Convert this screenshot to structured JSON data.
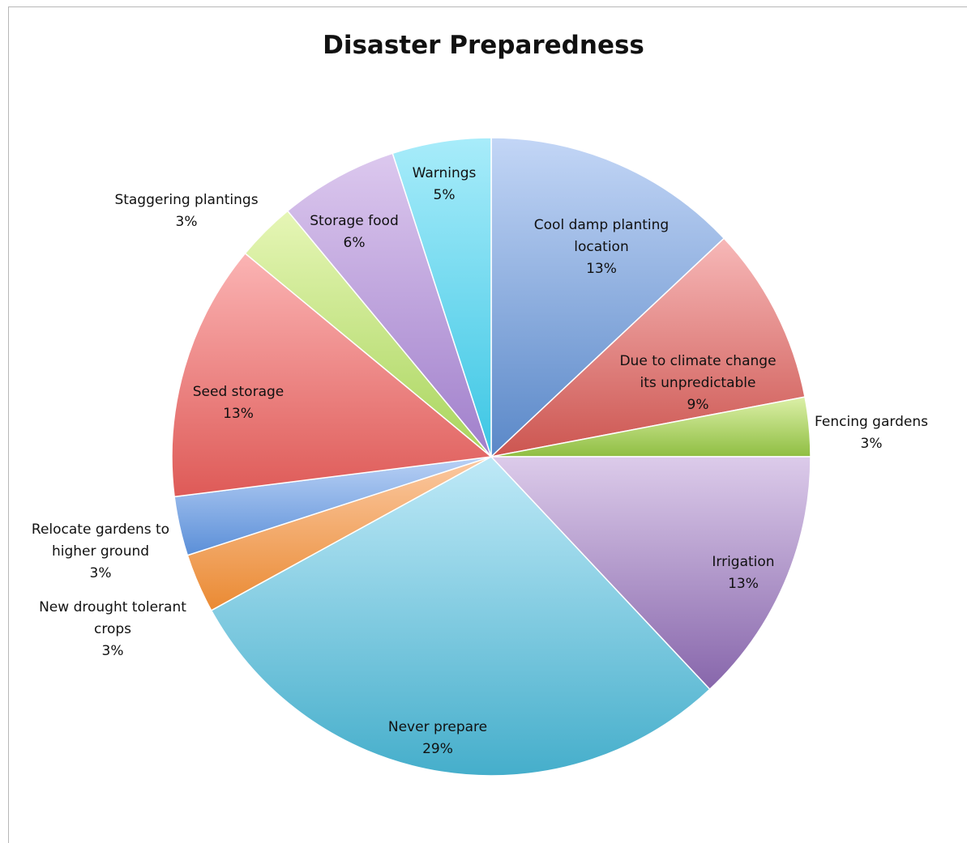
{
  "chart_data": {
    "type": "pie",
    "title": "Disaster Preparedness",
    "slices": [
      {
        "label": "Cool damp planting location",
        "label_lines": [
          "Cool damp planting",
          "location"
        ],
        "value": 13,
        "percent_label": "13%",
        "color_light": "#c3d6f6",
        "color_dark": "#5a88c8"
      },
      {
        "label": "Due to climate change its unpredictable",
        "label_lines": [
          "Due to climate change",
          "its unpredictable"
        ],
        "value": 9,
        "percent_label": "9%",
        "color_light": "#f7b8b8",
        "color_dark": "#cc5550"
      },
      {
        "label": "Fencing gardens",
        "label_lines": [
          "Fencing gardens"
        ],
        "value": 3,
        "percent_label": "3%",
        "color_light": "#dcf0a8",
        "color_dark": "#8fbe42"
      },
      {
        "label": "Irrigation",
        "label_lines": [
          "Irrigation"
        ],
        "value": 13,
        "percent_label": "13%",
        "color_light": "#dccbea",
        "color_dark": "#8766ab"
      },
      {
        "label": "Never prepare",
        "label_lines": [
          "Never prepare"
        ],
        "value": 29,
        "percent_label": "29%",
        "color_light": "#bfe9f7",
        "color_dark": "#45aecb"
      },
      {
        "label": "New drought tolerant crops",
        "label_lines": [
          "New drought tolerant",
          "crops"
        ],
        "value": 3,
        "percent_label": "3%",
        "color_light": "#fbc9a2",
        "color_dark": "#ea8a33"
      },
      {
        "label": "Relocate gardens to higher ground",
        "label_lines": [
          "Relocate gardens to",
          "higher ground"
        ],
        "value": 3,
        "percent_label": "3%",
        "color_light": "#b9d1f5",
        "color_dark": "#5b8fd8"
      },
      {
        "label": "Seed storage",
        "label_lines": [
          "Seed storage"
        ],
        "value": 13,
        "percent_label": "13%",
        "color_light": "#fbb4b4",
        "color_dark": "#de5a57"
      },
      {
        "label": "Staggering plantings",
        "label_lines": [
          "Staggering plantings"
        ],
        "value": 3,
        "percent_label": "3%",
        "color_light": "#e6f6b6",
        "color_dark": "#a8d45c"
      },
      {
        "label": "Storage food",
        "label_lines": [
          "Storage food"
        ],
        "value": 6,
        "percent_label": "6%",
        "color_light": "#dcc8ee",
        "color_dark": "#a07fcb"
      },
      {
        "label": "Warnings",
        "label_lines": [
          "Warnings"
        ],
        "value": 5,
        "percent_label": "5%",
        "color_light": "#a8ecfa",
        "color_dark": "#3cc6e4"
      }
    ],
    "legend": "none"
  }
}
